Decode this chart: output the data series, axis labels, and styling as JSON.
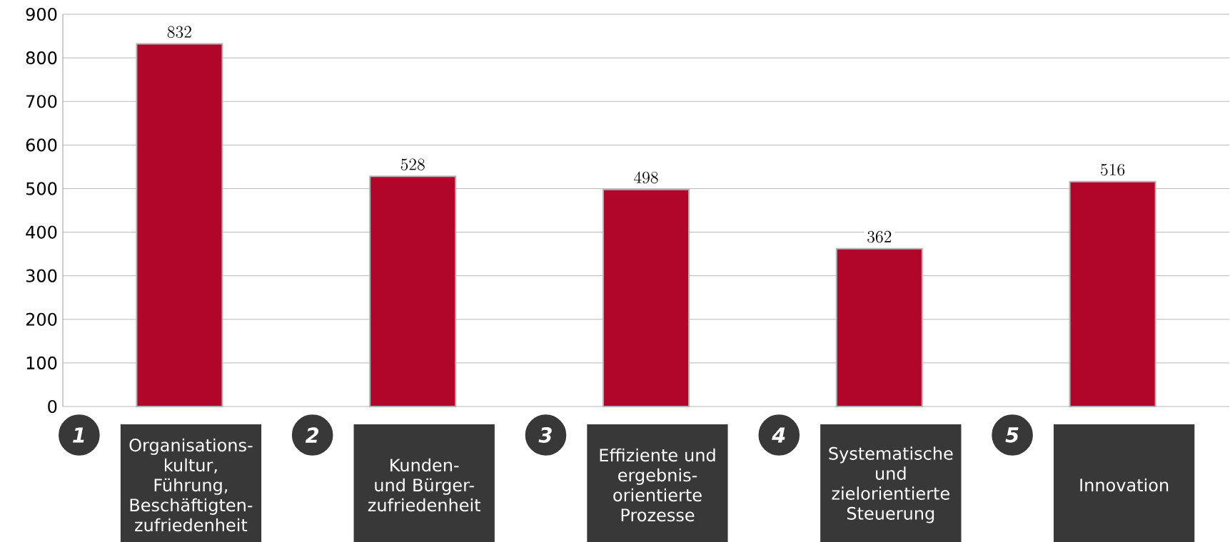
{
  "chart_data": {
    "type": "bar",
    "categories": [
      "Organisations-kultur, Führung, Beschäftigten-zufriedenheit",
      "Kunden- und Bürger-zufriedenheit",
      "Effiziente und ergebnis-orientierte Prozesse",
      "Systematische und zielorientierte Steuerung",
      "Innovation"
    ],
    "values": [
      832,
      528,
      498,
      362,
      516
    ],
    "color": "#b0062a",
    "ylim": [
      0,
      900
    ],
    "yticks": [
      0,
      100,
      200,
      300,
      400,
      500,
      600,
      700,
      800,
      900
    ],
    "grid": "y",
    "data_labels": true,
    "annotations": [
      "1",
      "2",
      "3",
      "4",
      "5"
    ]
  }
}
